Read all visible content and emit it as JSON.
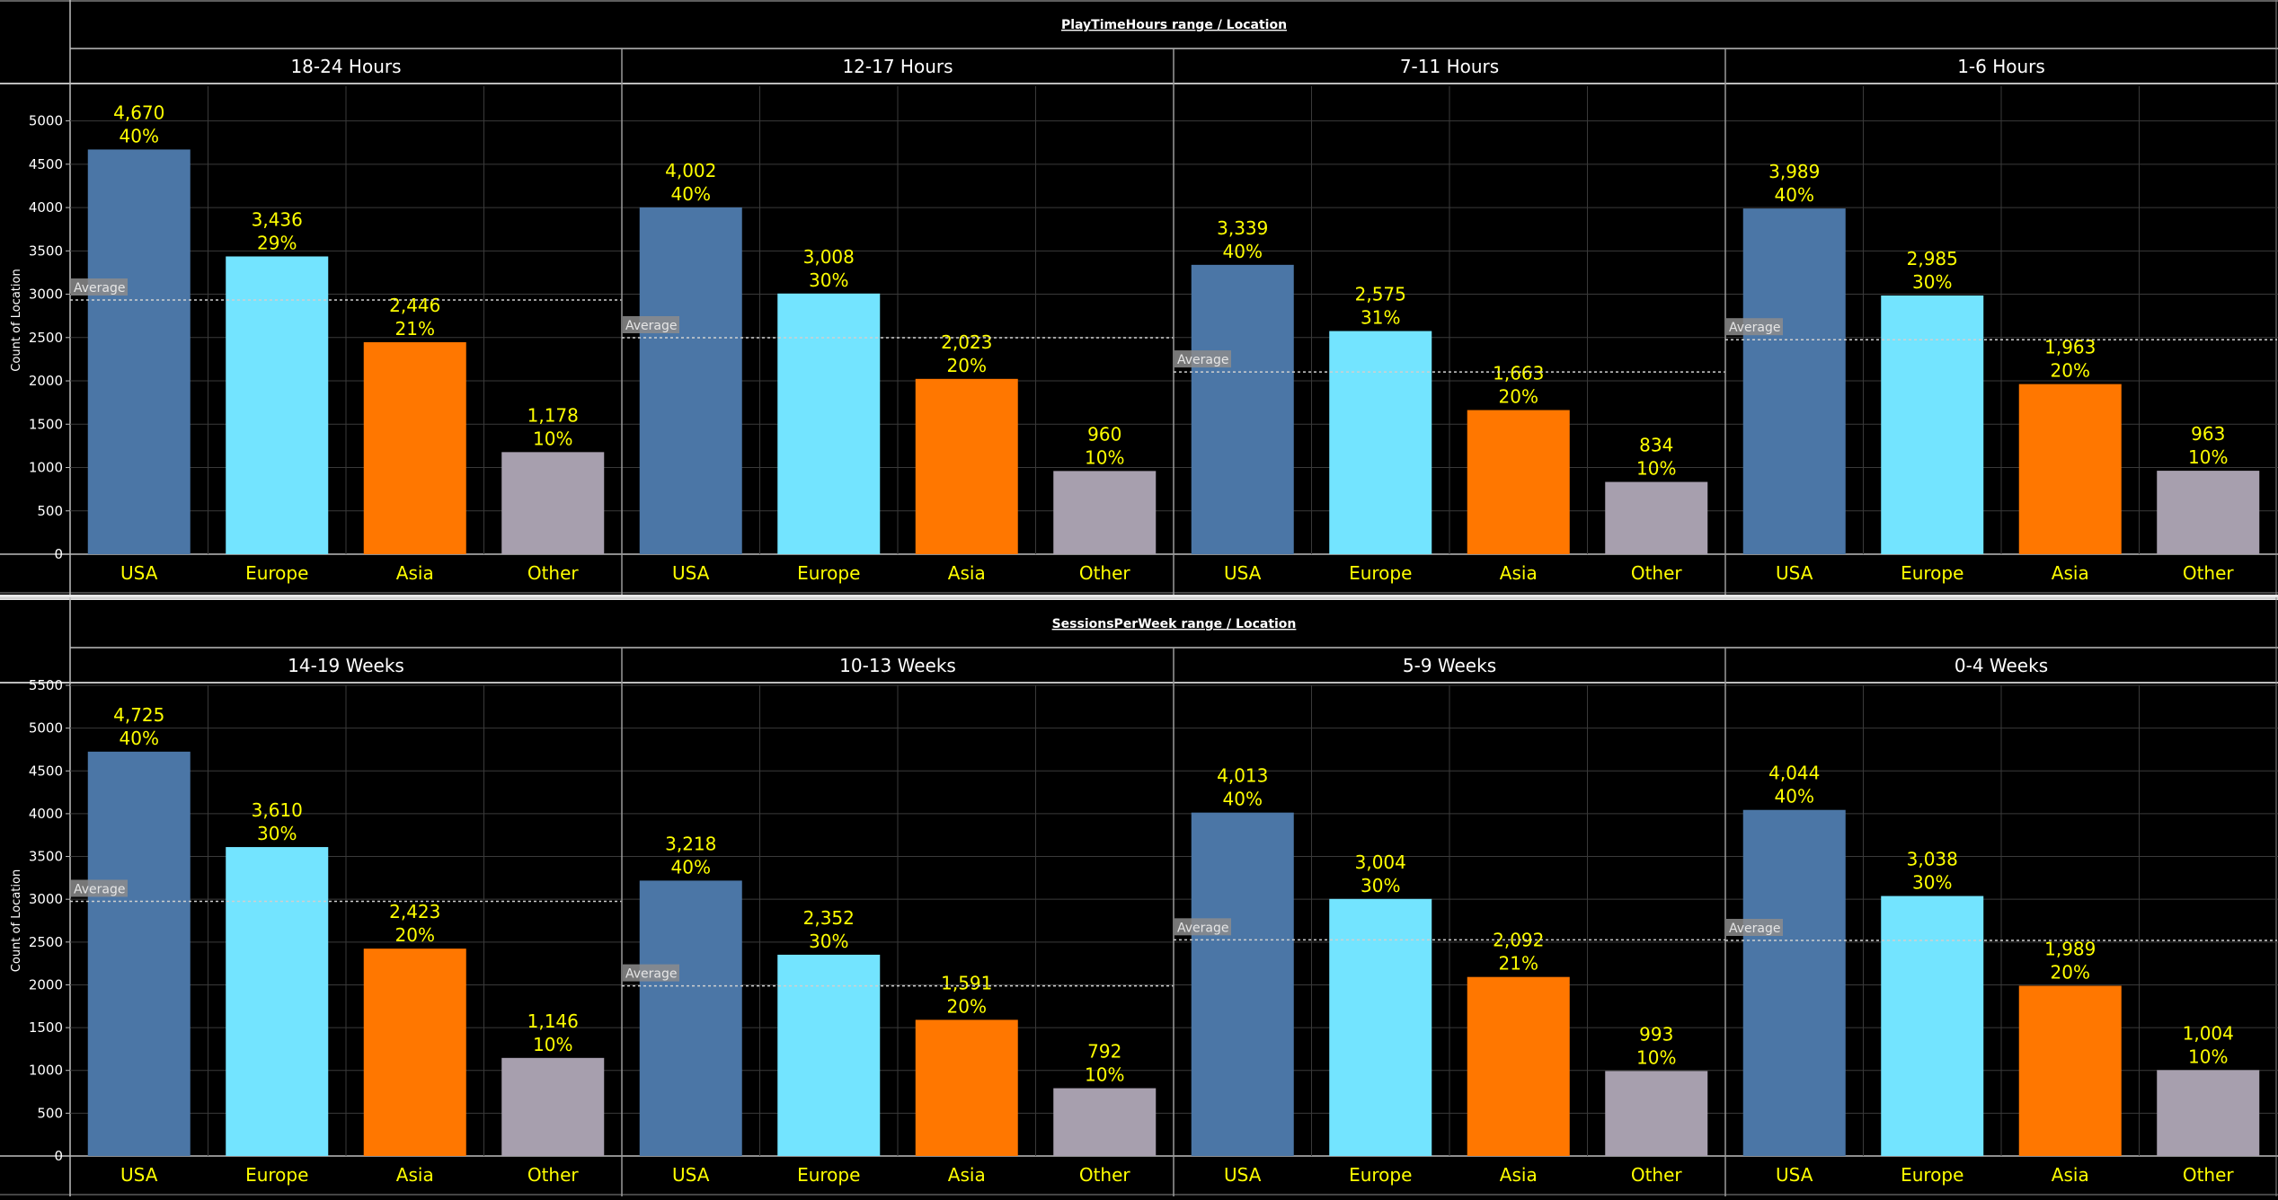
{
  "colors": {
    "USA": "#4b76a6",
    "Europe": "#73e4ff",
    "Asia": "#ff7700",
    "Other": "#a79fae",
    "label": "#ffff00",
    "text": "#ffffff",
    "background": "#000000"
  },
  "chart_data": [
    {
      "type": "bar",
      "title": "PlayTimeHours range  /  Location",
      "ylabel": "Count of Location",
      "ylim": [
        0,
        5400
      ],
      "yticks": [
        0,
        500,
        1000,
        1500,
        2000,
        2500,
        3000,
        3500,
        4000,
        4500,
        5000
      ],
      "categories": [
        "USA",
        "Europe",
        "Asia",
        "Other"
      ],
      "reference_line_label": "Average",
      "panels": [
        {
          "name": "18-24 Hours",
          "values": [
            4670,
            3436,
            2446,
            1178
          ],
          "value_labels": [
            "4,670",
            "3,436",
            "2,446",
            "1,178"
          ],
          "percent_labels": [
            "40%",
            "29%",
            "21%",
            "10%"
          ],
          "average": 2933
        },
        {
          "name": "12-17 Hours",
          "values": [
            4002,
            3008,
            2023,
            960
          ],
          "value_labels": [
            "4,002",
            "3,008",
            "2,023",
            "960"
          ],
          "percent_labels": [
            "40%",
            "30%",
            "20%",
            "10%"
          ],
          "average": 2498
        },
        {
          "name": "7-11 Hours",
          "values": [
            3339,
            2575,
            1663,
            834
          ],
          "value_labels": [
            "3,339",
            "2,575",
            "1,663",
            "834"
          ],
          "percent_labels": [
            "40%",
            "31%",
            "20%",
            "10%"
          ],
          "average": 2103
        },
        {
          "name": "1-6 Hours",
          "values": [
            3989,
            2985,
            1963,
            963
          ],
          "value_labels": [
            "3,989",
            "2,985",
            "1,963",
            "963"
          ],
          "percent_labels": [
            "40%",
            "30%",
            "20%",
            "10%"
          ],
          "average": 2475
        }
      ]
    },
    {
      "type": "bar",
      "title": "SessionsPerWeek range  /  Location",
      "ylabel": "Count of Location",
      "ylim": [
        0,
        5500
      ],
      "yticks": [
        0,
        500,
        1000,
        1500,
        2000,
        2500,
        3000,
        3500,
        4000,
        4500,
        5000,
        5500
      ],
      "categories": [
        "USA",
        "Europe",
        "Asia",
        "Other"
      ],
      "reference_line_label": "Average",
      "panels": [
        {
          "name": "14-19 Weeks",
          "values": [
            4725,
            3610,
            2423,
            1146
          ],
          "value_labels": [
            "4,725",
            "3,610",
            "2,423",
            "1,146"
          ],
          "percent_labels": [
            "40%",
            "30%",
            "20%",
            "10%"
          ],
          "average": 2976
        },
        {
          "name": "10-13 Weeks",
          "values": [
            3218,
            2352,
            1591,
            792
          ],
          "value_labels": [
            "3,218",
            "2,352",
            "1,591",
            "792"
          ],
          "percent_labels": [
            "40%",
            "30%",
            "20%",
            "10%"
          ],
          "average": 1988
        },
        {
          "name": "5-9 Weeks",
          "values": [
            4013,
            3004,
            2092,
            993
          ],
          "value_labels": [
            "4,013",
            "3,004",
            "2,092",
            "993"
          ],
          "percent_labels": [
            "40%",
            "30%",
            "21%",
            "10%"
          ],
          "average": 2526
        },
        {
          "name": "0-4 Weeks",
          "values": [
            4044,
            3038,
            1989,
            1004
          ],
          "value_labels": [
            "4,044",
            "3,038",
            "1,989",
            "1,004"
          ],
          "percent_labels": [
            "40%",
            "30%",
            "20%",
            "10%"
          ],
          "average": 2519
        }
      ]
    }
  ]
}
